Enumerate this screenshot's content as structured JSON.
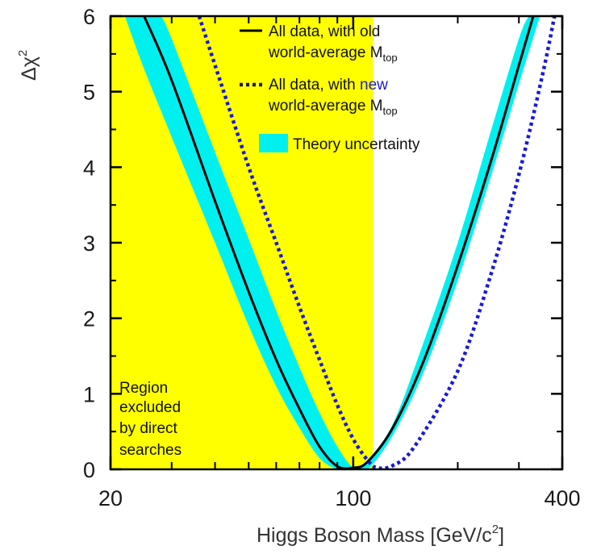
{
  "chart_data": {
    "type": "line",
    "title": "",
    "xlabel_main": "Higgs Boson Mass [GeV/c",
    "xlabel_sup": "2",
    "xlabel_end": "]",
    "ylabel_main": "Δχ",
    "ylabel_sup": "2",
    "x_scale": "log",
    "xlim": [
      20,
      400
    ],
    "ylim": [
      0,
      6
    ],
    "x_ticks": [
      "20",
      "100",
      "400"
    ],
    "y_ticks": [
      "0",
      "1",
      "2",
      "3",
      "4",
      "5",
      "6"
    ],
    "excluded_region": {
      "x_range": [
        20,
        114
      ],
      "color": "#ffff00",
      "label_lines": [
        "Region",
        "excluded",
        "by direct",
        "searches"
      ]
    },
    "legend": [
      {
        "style": "solid",
        "text": "All data, with old",
        "text2": "world-average M",
        "sub": "top"
      },
      {
        "style": "dotted",
        "text": "All data, with ",
        "text_colored": "new",
        "text2": "world-average M",
        "sub": "top"
      },
      {
        "style": "band",
        "text": "Theory uncertainty"
      }
    ],
    "series": [
      {
        "name": "All data, with old world-average Mtop",
        "style": "solid",
        "color": "#000000",
        "x": [
          25,
          30,
          40,
          50,
          60,
          70,
          80,
          90,
          100,
          110,
          130,
          160,
          200,
          250,
          300,
          330
        ],
        "y": [
          6.0,
          5.15,
          3.55,
          2.35,
          1.45,
          0.8,
          0.3,
          0.04,
          0.02,
          0.1,
          0.55,
          1.45,
          2.7,
          4.1,
          5.35,
          6.0
        ]
      },
      {
        "name": "All data, with new world-average Mtop",
        "style": "dotted",
        "color": "#1a1ad6",
        "x": [
          36,
          40,
          50,
          60,
          70,
          80,
          90,
          100,
          110,
          117,
          130,
          150,
          200,
          250,
          300,
          350,
          380
        ],
        "y": [
          6.0,
          5.35,
          4.0,
          3.0,
          2.15,
          1.45,
          0.85,
          0.4,
          0.12,
          0.02,
          0.05,
          0.3,
          1.3,
          2.6,
          3.9,
          5.2,
          6.0
        ]
      }
    ],
    "theory_band": {
      "name": "Theory uncertainty",
      "color": "#00f0f0",
      "x_lower": [
        22,
        25,
        30,
        40,
        50,
        60,
        70,
        80,
        90,
        100,
        110,
        130,
        160,
        200,
        250,
        300,
        320
      ],
      "y_lower": [
        6.0,
        5.3,
        4.4,
        3.0,
        1.9,
        1.1,
        0.55,
        0.15,
        0.0,
        0.0,
        0.12,
        0.6,
        1.7,
        3.0,
        4.5,
        5.7,
        6.0
      ],
      "x_upper": [
        28,
        30,
        40,
        50,
        60,
        70,
        80,
        90,
        100,
        110,
        130,
        160,
        200,
        250,
        300,
        345
      ],
      "y_upper": [
        6.0,
        5.7,
        4.2,
        3.05,
        2.1,
        1.35,
        0.75,
        0.3,
        0.02,
        0.0,
        0.45,
        1.3,
        2.5,
        3.9,
        5.1,
        6.0
      ]
    },
    "colors": {
      "band": "#00f0f0",
      "excluded": "#ffff00",
      "new_text": "#1a1ad6",
      "band_label": "#4ef4f0"
    }
  }
}
